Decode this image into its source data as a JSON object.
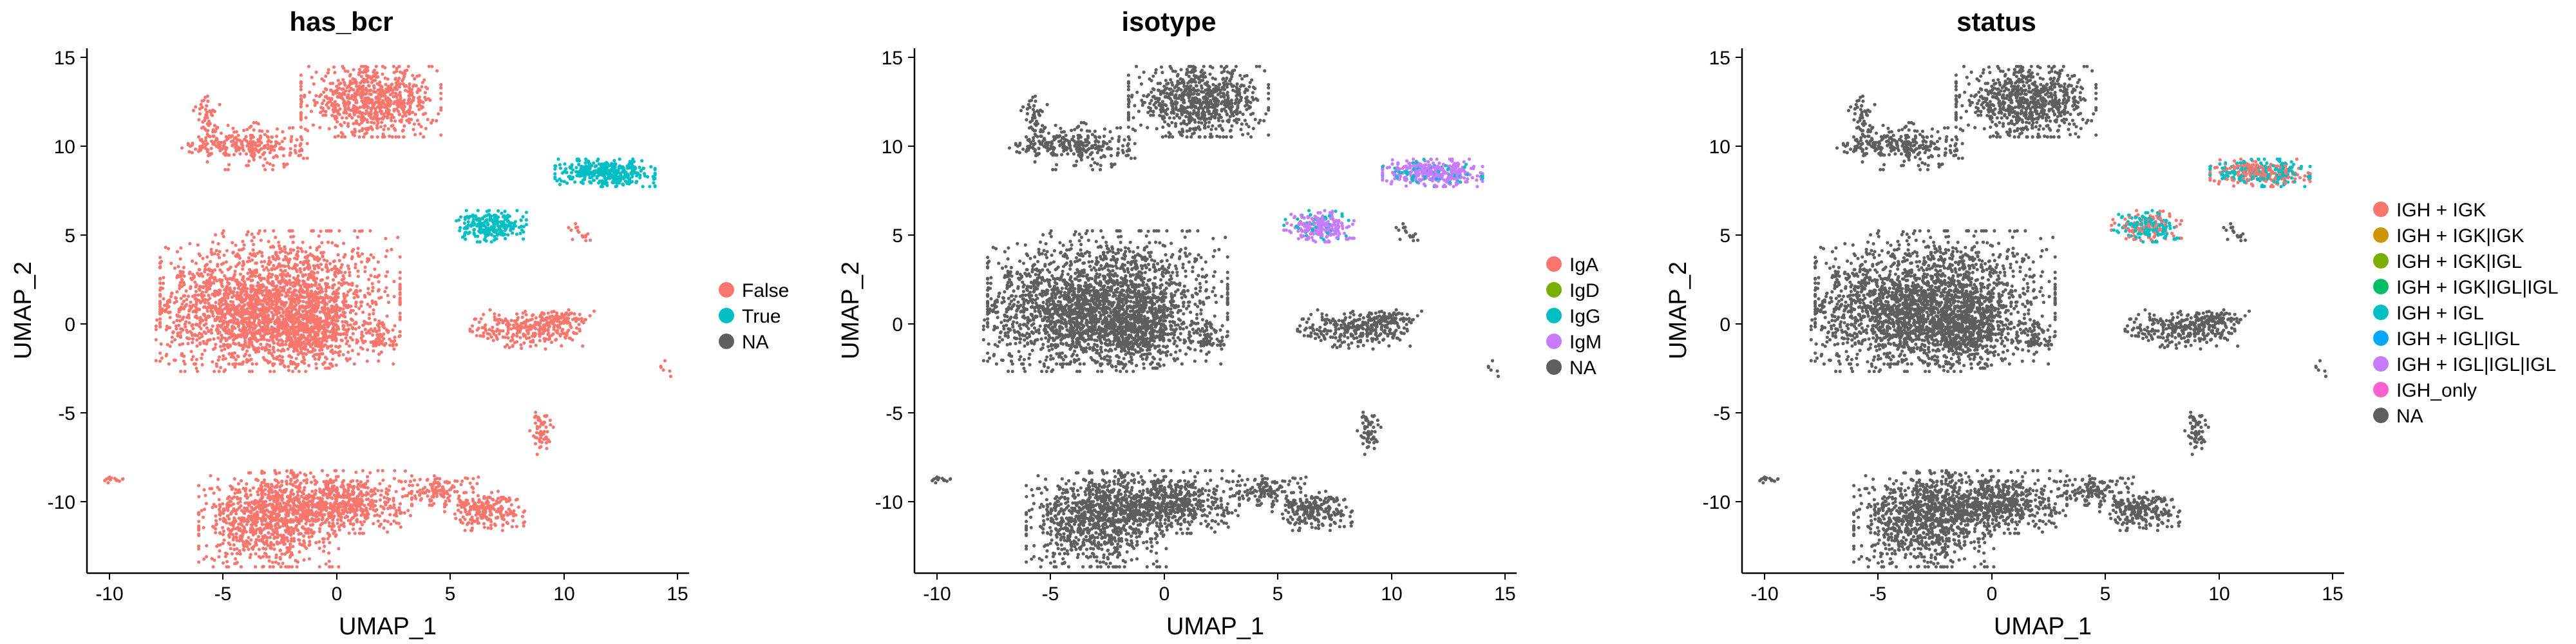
{
  "chart_data": [
    {
      "type": "scatter",
      "title": "has_bcr",
      "xlabel": "UMAP_1",
      "ylabel": "UMAP_2",
      "xlim": [
        -11,
        15.5
      ],
      "ylim": [
        -14,
        15.5
      ],
      "xticks": [
        -10,
        -5,
        0,
        5,
        10,
        15
      ],
      "yticks": [
        -10,
        -5,
        0,
        5,
        10,
        15
      ],
      "grid": false,
      "legend_position": "right",
      "series": [
        {
          "name": "False",
          "color": "#F8766D"
        },
        {
          "name": "True",
          "color": "#00BFC4"
        },
        {
          "name": "NA",
          "color": "#5E5E5E"
        }
      ]
    },
    {
      "type": "scatter",
      "title": "isotype",
      "xlabel": "UMAP_1",
      "ylabel": "UMAP_2",
      "xlim": [
        -11,
        15.5
      ],
      "ylim": [
        -14,
        15.5
      ],
      "xticks": [
        -10,
        -5,
        0,
        5,
        10,
        15
      ],
      "yticks": [
        -10,
        -5,
        0,
        5,
        10,
        15
      ],
      "grid": false,
      "legend_position": "right",
      "series": [
        {
          "name": "IgA",
          "color": "#F8766D"
        },
        {
          "name": "IgD",
          "color": "#7CAE00"
        },
        {
          "name": "IgG",
          "color": "#00BFC4"
        },
        {
          "name": "IgM",
          "color": "#C77CFF"
        },
        {
          "name": "NA",
          "color": "#5E5E5E"
        }
      ]
    },
    {
      "type": "scatter",
      "title": "status",
      "xlabel": "UMAP_1",
      "ylabel": "UMAP_2",
      "xlim": [
        -11,
        15.5
      ],
      "ylim": [
        -14,
        15.5
      ],
      "xticks": [
        -10,
        -5,
        0,
        5,
        10,
        15
      ],
      "yticks": [
        -10,
        -5,
        0,
        5,
        10,
        15
      ],
      "grid": false,
      "legend_position": "right",
      "series": [
        {
          "name": "IGH + IGK",
          "color": "#F8766D"
        },
        {
          "name": "IGH + IGK|IGK",
          "color": "#CD9600"
        },
        {
          "name": "IGH + IGK|IGL",
          "color": "#7CAE00"
        },
        {
          "name": "IGH + IGK|IGL|IGL",
          "color": "#00BE67"
        },
        {
          "name": "IGH + IGL",
          "color": "#00BFC4"
        },
        {
          "name": "IGH + IGL|IGL",
          "color": "#00A9FF"
        },
        {
          "name": "IGH + IGL|IGL|IGL",
          "color": "#C77CFF"
        },
        {
          "name": "IGH_only",
          "color": "#FF61CC"
        },
        {
          "name": "NA",
          "color": "#5E5E5E"
        }
      ]
    }
  ],
  "clusters": [
    {
      "cx": -2.5,
      "cy": 1.5,
      "sx": 2.4,
      "sy": 1.7,
      "n": 1600,
      "role": "base"
    },
    {
      "cx": -4.0,
      "cy": 0.2,
      "sx": 1.8,
      "sy": 1.3,
      "n": 700,
      "role": "base"
    },
    {
      "cx": -1.0,
      "cy": -0.5,
      "sx": 1.3,
      "sy": 0.9,
      "n": 400,
      "role": "base"
    },
    {
      "cx": 1.5,
      "cy": 12.5,
      "sx": 1.4,
      "sy": 0.9,
      "n": 750,
      "role": "base"
    },
    {
      "cx": -3.5,
      "cy": 10.0,
      "sx": 1.0,
      "sy": 0.6,
      "n": 220,
      "role": "base"
    },
    {
      "cx": -5.5,
      "cy": 10.0,
      "sx": 0.6,
      "sy": 0.2,
      "n": 60,
      "role": "base"
    },
    {
      "cx": -5.7,
      "cy": 11.5,
      "sx": 0.3,
      "sy": 0.6,
      "n": 50,
      "role": "base"
    },
    {
      "cx": -3.0,
      "cy": -11.0,
      "sx": 1.4,
      "sy": 1.2,
      "n": 900,
      "role": "base"
    },
    {
      "cx": 0.0,
      "cy": -10.0,
      "sx": 1.5,
      "sy": 0.8,
      "n": 650,
      "role": "base"
    },
    {
      "cx": 6.5,
      "cy": -10.5,
      "sx": 0.8,
      "sy": 0.5,
      "n": 220,
      "role": "base"
    },
    {
      "cx": 4.5,
      "cy": -9.3,
      "sx": 0.8,
      "sy": 0.4,
      "n": 120,
      "role": "base"
    },
    {
      "cx": 8.5,
      "cy": -0.3,
      "sx": 1.2,
      "sy": 0.5,
      "n": 280,
      "role": "base"
    },
    {
      "cx": 10.0,
      "cy": 0.3,
      "sx": 0.6,
      "sy": 0.2,
      "n": 60,
      "role": "base"
    },
    {
      "cx": 9.0,
      "cy": -6.0,
      "sx": 0.25,
      "sy": 0.6,
      "n": 60,
      "role": "base"
    },
    {
      "cx": 2.0,
      "cy": -0.8,
      "sx": 0.4,
      "sy": 0.4,
      "n": 50,
      "role": "base"
    },
    {
      "cx": -6.8,
      "cy": 2.6,
      "sx": 0.15,
      "sy": 0.3,
      "n": 15,
      "role": "base"
    },
    {
      "cx": -5.5,
      "cy": 3.0,
      "sx": 0.15,
      "sy": 0.15,
      "n": 8,
      "role": "base"
    },
    {
      "cx": -9.8,
      "cy": -8.7,
      "sx": 0.3,
      "sy": 0.1,
      "n": 15,
      "role": "base"
    },
    {
      "cx": 14.5,
      "cy": -2.5,
      "sx": 0.15,
      "sy": 0.2,
      "n": 6,
      "role": "base"
    },
    {
      "cx": 10.5,
      "cy": 5.2,
      "sx": 0.15,
      "sy": 0.2,
      "n": 8,
      "role": "base"
    },
    {
      "cx": 11.0,
      "cy": 4.8,
      "sx": 0.15,
      "sy": 0.15,
      "n": 8,
      "role": "base"
    },
    {
      "cx": 11.8,
      "cy": 8.5,
      "sx": 1.0,
      "sy": 0.35,
      "n": 380,
      "role": "bcrA"
    },
    {
      "cx": 6.8,
      "cy": 5.5,
      "sx": 0.7,
      "sy": 0.4,
      "n": 240,
      "role": "bcrB"
    }
  ]
}
